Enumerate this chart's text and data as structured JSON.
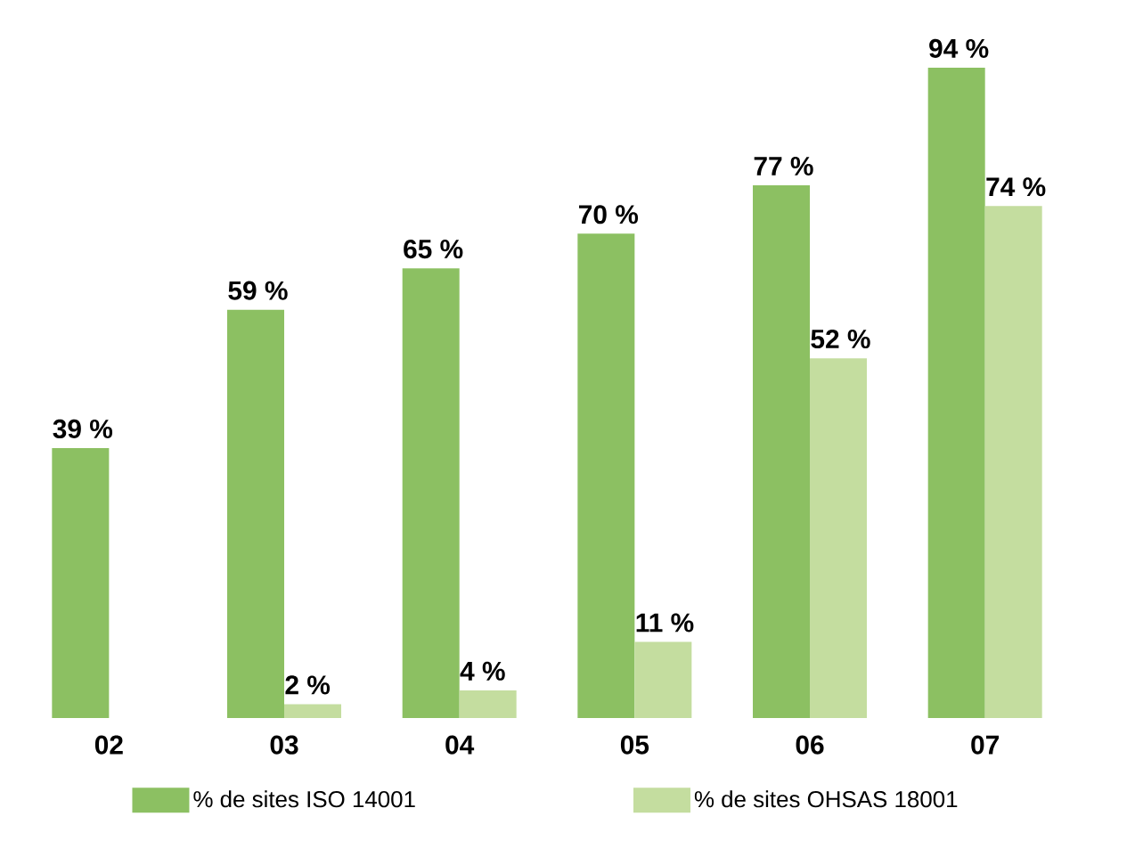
{
  "chart_data": {
    "type": "bar",
    "categories": [
      "02",
      "03",
      "04",
      "05",
      "06",
      "07"
    ],
    "series": [
      {
        "name": "% de sites ISO 14001",
        "color": "#8cc062",
        "values": [
          39,
          59,
          65,
          70,
          77,
          94
        ],
        "value_labels": [
          "39 %",
          "59 %",
          "65 %",
          "70 %",
          "77 %",
          "94 %"
        ]
      },
      {
        "name": "% de sites OHSAS 18001",
        "color": "#c4dd9f",
        "values": [
          null,
          2,
          4,
          11,
          52,
          74
        ],
        "value_labels": [
          null,
          "2 %",
          "4 %",
          "11 %",
          "52 %",
          "74 %"
        ]
      }
    ],
    "ylim": [
      0,
      94
    ],
    "tick_labels": "x",
    "legend": "bottom"
  }
}
